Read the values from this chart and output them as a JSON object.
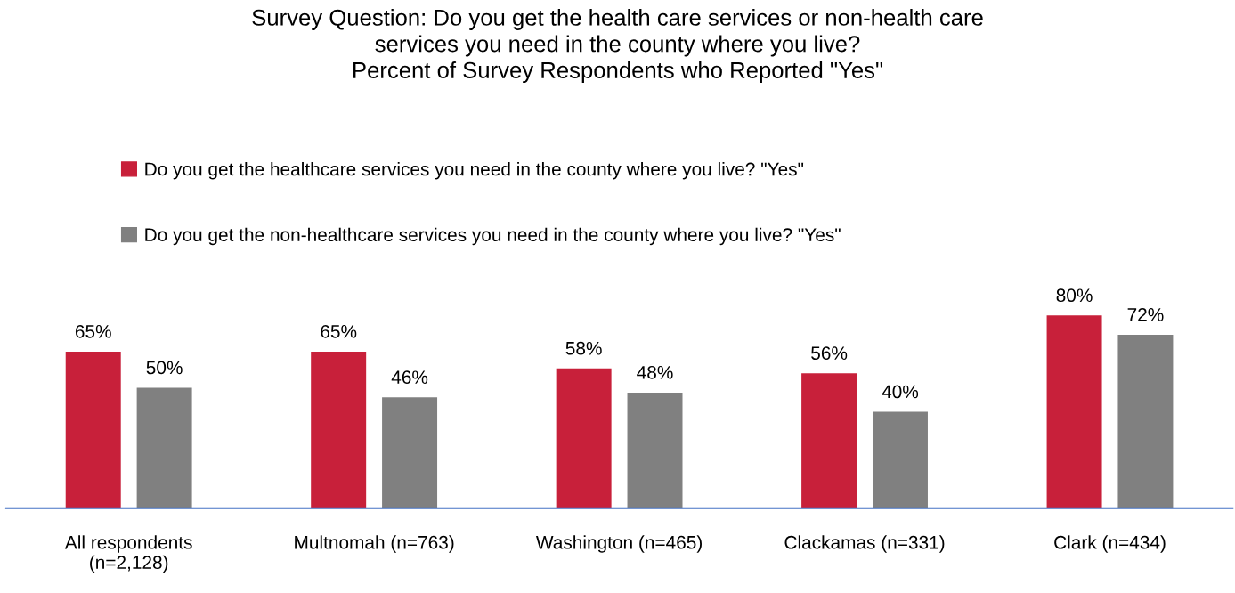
{
  "chart_data": {
    "type": "bar",
    "title": "Survey Question: Do you get the health care services or non-health care\nservices you need in the county where you live?\nPercent of Survey Respondents who Reported \"Yes\"",
    "categories": [
      "All respondents\n(n=2,128)",
      "Multnomah (n=763)",
      "Washington (n=465)",
      "Clackamas (n=331)",
      "Clark (n=434)"
    ],
    "series": [
      {
        "name": "Do you get the healthcare services you need in the county where you live? \"Yes\"",
        "color": "#c8203a",
        "values": [
          65,
          65,
          58,
          56,
          80
        ],
        "value_labels": [
          "65%",
          "65%",
          "58%",
          "56%",
          "80%"
        ]
      },
      {
        "name": "Do you get the non-healthcare services you need in the county where you live? \"Yes\"",
        "color": "#808080",
        "values": [
          50,
          46,
          48,
          40,
          72
        ],
        "value_labels": [
          "50%",
          "46%",
          "48%",
          "40%",
          "72%"
        ]
      }
    ],
    "legend": "top",
    "grid": false
  }
}
